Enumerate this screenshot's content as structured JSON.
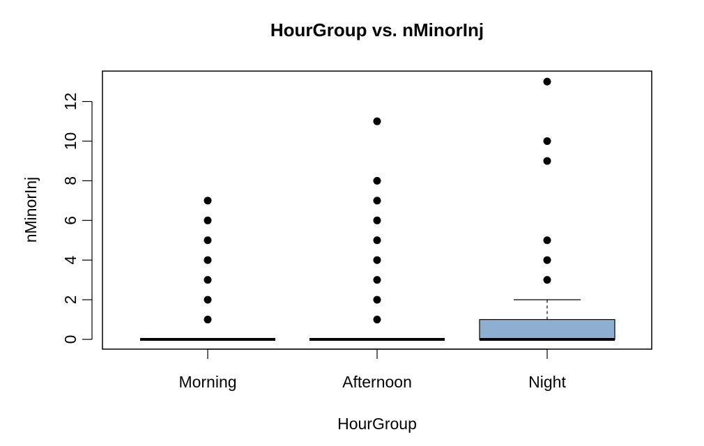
{
  "chart_data": {
    "type": "box",
    "title": "HourGroup  vs. nMinorInj",
    "xlabel": "HourGroup",
    "ylabel": "nMinorInj",
    "ylim": [
      -0.5,
      13.5
    ],
    "yticks": [
      0,
      2,
      4,
      6,
      8,
      10,
      12
    ],
    "categories": [
      "Morning",
      "Afternoon",
      "Night"
    ],
    "box_fill": "#8FAFD0",
    "grid": false,
    "legend": "none",
    "boxes": [
      {
        "category": "Morning",
        "q1": 0,
        "median": 0,
        "q3": 0,
        "whisker_low": 0,
        "whisker_high": 0,
        "outliers": [
          1,
          2,
          3,
          4,
          5,
          6,
          7
        ]
      },
      {
        "category": "Afternoon",
        "q1": 0,
        "median": 0,
        "q3": 0,
        "whisker_low": 0,
        "whisker_high": 0,
        "outliers": [
          1,
          2,
          3,
          4,
          5,
          6,
          7,
          8,
          11
        ]
      },
      {
        "category": "Night",
        "q1": 0,
        "median": 0,
        "q3": 1,
        "whisker_low": 0,
        "whisker_high": 2,
        "outliers": [
          3,
          4,
          5,
          9,
          10,
          13
        ]
      }
    ]
  }
}
